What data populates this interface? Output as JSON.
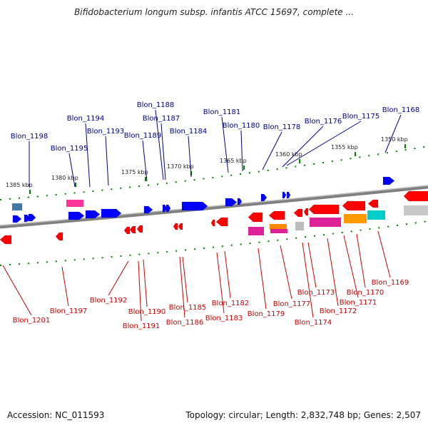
{
  "title": "Bifidobacterium longum subsp. infantis ATCC 15697, complete ...",
  "footer": {
    "accession": "Accession: NC_011593",
    "topology": "Topology: circular; Length: 2,832,748 bp; Genes: 2,507"
  },
  "colors": {
    "forward_label": "#00008b",
    "reverse_label": "#cc0000",
    "forward_gene": "#0000ff",
    "reverse_gene": "#ff0000",
    "backbone": "#808080",
    "tick": "#008000"
  },
  "scale": {
    "ticks_upper": [
      "1385 kbp",
      "1380 kbp",
      "1375 kbp",
      "1370 kbp",
      "1365 kbp",
      "1360 kbp",
      "1355 kbp",
      "1350 kbp"
    ]
  },
  "forward_genes": [
    "Blon_1198",
    "Blon_1195",
    "Blon_1194",
    "Blon_1193",
    "Blon_1189",
    "Blon_1188",
    "Blon_1187",
    "Blon_1184",
    "Blon_1181",
    "Blon_1180",
    "Blon_1178",
    "Blon_1176",
    "Blon_1175",
    "Blon_1168"
  ],
  "reverse_genes": [
    "Blon_1201",
    "Blon_1197",
    "Blon_1192",
    "Blon_1190",
    "Blon_1191",
    "Blon_1185",
    "Blon_1186",
    "Blon_1182",
    "Blon_1183",
    "Blon_1179",
    "Blon_1177",
    "Blon_1173",
    "Blon_1174",
    "Blon_1172",
    "Blon_1171",
    "Blon_1170",
    "Blon_1169"
  ]
}
